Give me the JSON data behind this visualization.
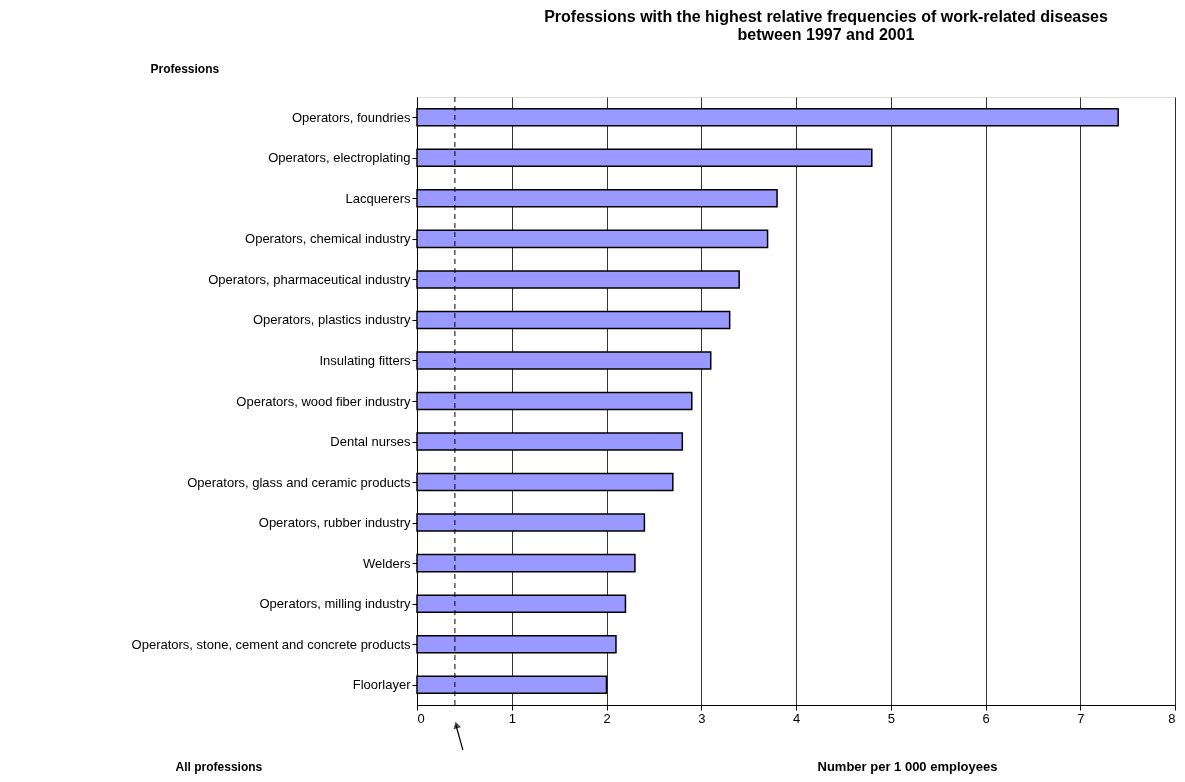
{
  "chart_data": {
    "type": "bar",
    "orientation": "horizontal",
    "title": "Professions with the highest relative frequencies of work-related diseases between 1997 and 2001",
    "ylabel": "Professions",
    "xlabel": "Number per 1 000 employees",
    "categories": [
      "Operators, foundries",
      "Operators, electroplating",
      "Lacquerers",
      "Operators, chemical industry",
      "Operators, pharmaceutical industry",
      "Operators, plastics industry",
      "Insulating fitters",
      "Operators, wood fiber industry",
      "Dental nurses",
      "Operators, glass and ceramic products",
      "Operators, rubber industry",
      "Welders",
      "Operators, milling industry",
      "Operators, stone, cement and concrete products",
      "Floorlayer"
    ],
    "values": [
      7.4,
      4.8,
      3.8,
      3.7,
      3.4,
      3.3,
      3.1,
      2.9,
      2.8,
      2.7,
      2.4,
      2.3,
      2.2,
      2.1,
      2.0
    ],
    "color": "#9999ff",
    "xlim": [
      0,
      8
    ],
    "xticks": [
      0,
      1,
      2,
      3,
      4,
      5,
      6,
      7,
      8
    ],
    "grid": "x",
    "ref_lines": [
      {
        "axis": "x",
        "value": 0.4,
        "label": "All professions",
        "line_style": "dashed",
        "color": "#000000"
      }
    ]
  }
}
